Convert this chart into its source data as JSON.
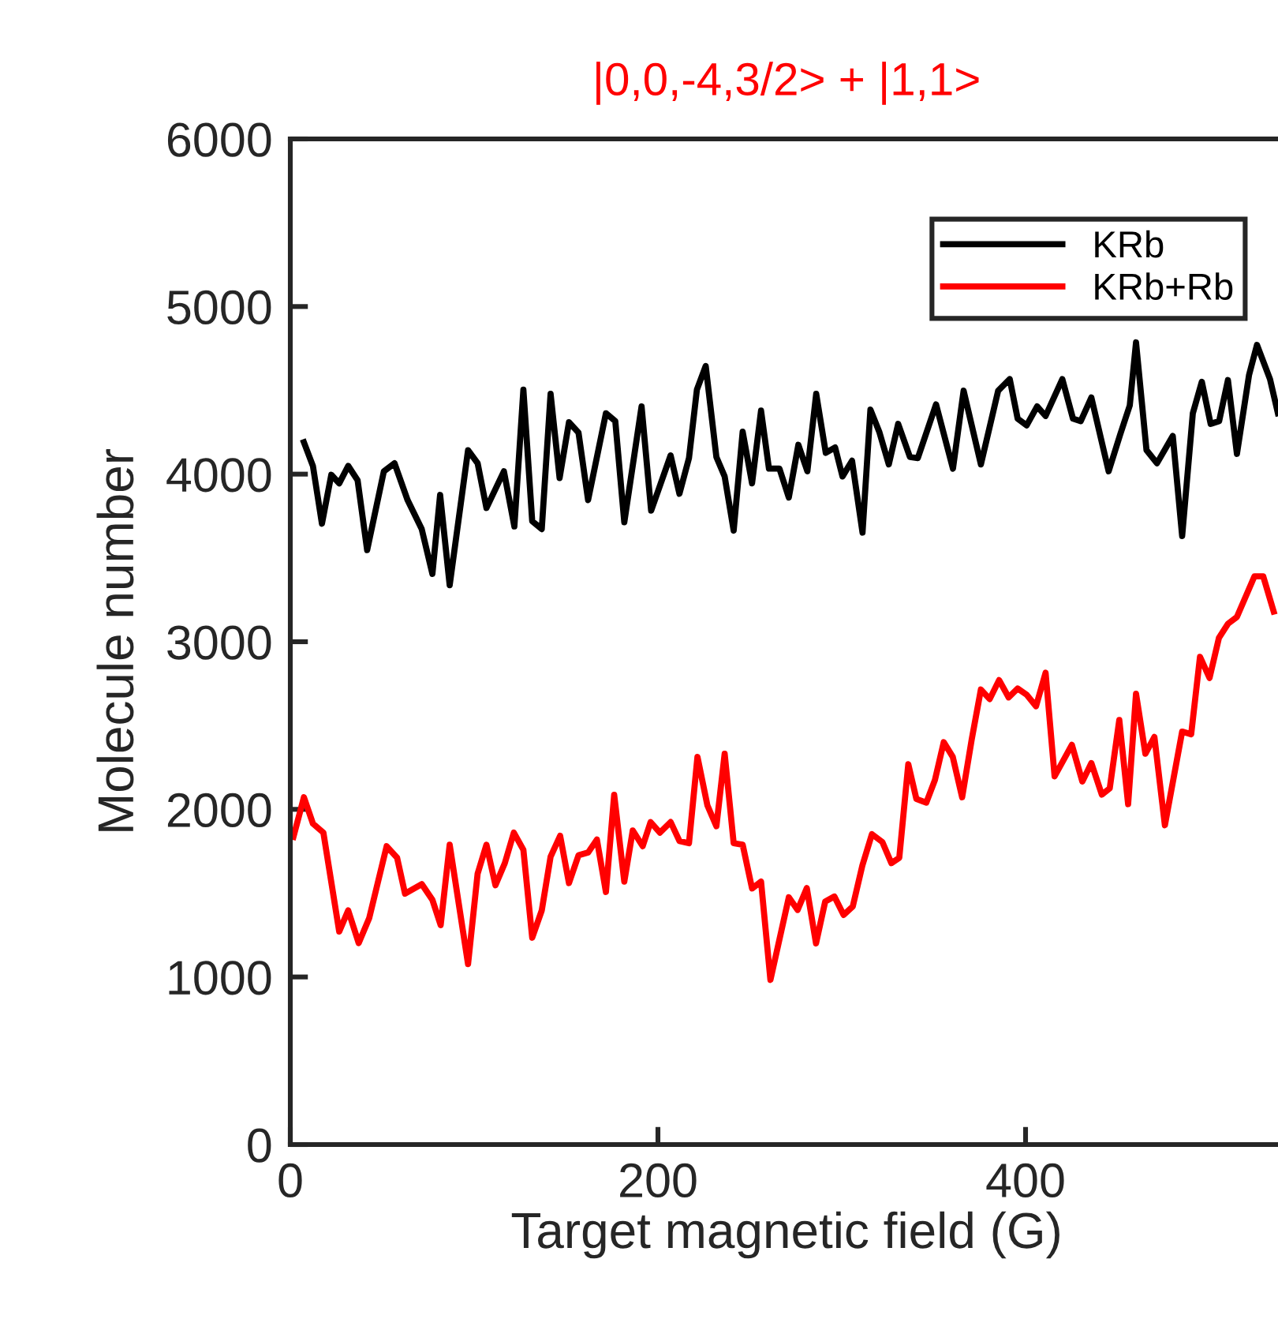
{
  "chart_data": {
    "type": "line",
    "title": "|0,0,-4,3/2> + |1,1>",
    "xlabel": "Target magnetic field (G)",
    "ylabel": "Molecule number",
    "xlim": [
      0,
      540
    ],
    "xticks": [
      0,
      200,
      400
    ],
    "ylim": [
      0,
      6000
    ],
    "yticks": [
      0,
      1000,
      2000,
      3000,
      4000,
      5000,
      6000
    ],
    "legend": "top right",
    "grid": false,
    "marker": "none",
    "line_style": "solid",
    "series": [
      {
        "name": "KRb",
        "color": "#000000",
        "x": [
          7.4,
          12.3,
          17.2,
          22.3,
          26.6,
          31.5,
          36.6,
          41.8,
          50.9,
          56.7,
          63.8,
          71.5,
          77.3,
          81.5,
          86.7,
          96.7,
          101.9,
          106.7,
          116.2,
          121.9,
          126.8,
          131.6,
          136.8,
          141.6,
          146.5,
          151.6,
          156.8,
          162.0,
          171.7,
          176.8,
          181.7,
          191.1,
          196.3,
          206.9,
          211.7,
          216.9,
          221.2,
          226.0,
          231.8,
          236.3,
          241.2,
          246.1,
          251.2,
          256.1,
          260.4,
          266.1,
          271.2,
          276.4,
          281.3,
          286.1,
          291.3,
          296.4,
          300.4,
          305.6,
          311.3,
          315.6,
          320.4,
          325.6,
          330.7,
          337.1,
          341.4,
          351.3,
          360.5,
          366.3,
          375.7,
          385.1,
          391.4,
          395.7,
          400.6,
          406.3,
          410.9,
          420.0,
          425.8,
          430.0,
          435.8,
          445.2,
          451.5,
          456.7,
          460.1,
          465.8,
          471.5,
          480.1,
          485.2,
          491.0,
          495.9,
          500.7,
          505.3,
          510.1,
          515.0,
          521.6,
          525.9,
          533.0,
          537.3
        ],
        "values": [
          4190,
          4049,
          3704,
          3996,
          3945,
          4049,
          3964,
          3547,
          4017,
          4065,
          3845,
          3672,
          3405,
          3876,
          3337,
          4143,
          4065,
          3798,
          4017,
          3688,
          4504,
          3719,
          3672,
          4479,
          3977,
          4310,
          4247,
          3845,
          4363,
          4316,
          3713,
          4404,
          3782,
          4112,
          3883,
          4096,
          4504,
          4645,
          4102,
          3986,
          3663,
          4253,
          3945,
          4379,
          4033,
          4033,
          3861,
          4175,
          4017,
          4479,
          4127,
          4159,
          3986,
          4080,
          3651,
          4385,
          4253,
          4058,
          4300,
          4102,
          4096,
          4416,
          4033,
          4498,
          4058,
          4498,
          4567,
          4331,
          4291,
          4404,
          4347,
          4567,
          4331,
          4316,
          4457,
          4017,
          4237,
          4410,
          4786,
          4143,
          4065,
          4228,
          3631,
          4363,
          4551,
          4300,
          4316,
          4561,
          4121,
          4592,
          4771,
          4567,
          4363
        ]
      },
      {
        "name": "KRb+Rb",
        "color": "#ff0000",
        "x": [
          1.7,
          7.4,
          12.3,
          18.0,
          26.6,
          31.5,
          37.2,
          42.9,
          52.4,
          58.1,
          62.4,
          71.5,
          77.3,
          81.8,
          86.7,
          96.7,
          101.9,
          106.7,
          111.6,
          116.7,
          121.6,
          126.8,
          131.6,
          136.8,
          141.6,
          146.8,
          151.6,
          156.8,
          162.0,
          166.8,
          171.7,
          176.2,
          181.7,
          186.3,
          191.7,
          196.0,
          201.1,
          206.9,
          211.7,
          216.9,
          221.5,
          226.9,
          231.8,
          236.3,
          241.2,
          246.1,
          251.2,
          256.1,
          261.2,
          271.2,
          276.0,
          281.0,
          286.0,
          291.0,
          296.0,
          301.0,
          306.0,
          311.2,
          316.4,
          322.1,
          327.0,
          331.3,
          336.2,
          340.6,
          346.0,
          350.7,
          355.5,
          360.4,
          365.5,
          370.7,
          375.7,
          380.5,
          385.6,
          390.8,
          395.7,
          400.6,
          405.7,
          410.9,
          415.8,
          425.2,
          430.9,
          435.8,
          441.5,
          445.8,
          451.0,
          455.8,
          460.1,
          465.2,
          470.1,
          475.8,
          485.2,
          490.1,
          494.9,
          500.1,
          505.2,
          510.1,
          515.0,
          524.5,
          529.3,
          535.0
        ],
        "values": [
          1836,
          2072,
          1915,
          1861,
          1271,
          1397,
          1202,
          1350,
          1780,
          1711,
          1497,
          1554,
          1460,
          1309,
          1789,
          1077,
          1616,
          1789,
          1547,
          1679,
          1861,
          1758,
          1234,
          1397,
          1717,
          1842,
          1560,
          1726,
          1742,
          1820,
          1507,
          2087,
          1569,
          1874,
          1780,
          1924,
          1861,
          1924,
          1811,
          1798,
          2313,
          2024,
          1899,
          2332,
          1798,
          1789,
          1528,
          1569,
          982,
          1475,
          1400,
          1530,
          1200,
          1450,
          1480,
          1370,
          1420,
          1664,
          1852,
          1805,
          1679,
          1711,
          2269,
          2062,
          2040,
          2175,
          2401,
          2313,
          2072,
          2417,
          2715,
          2658,
          2771,
          2668,
          2721,
          2684,
          2615,
          2815,
          2197,
          2385,
          2166,
          2276,
          2088,
          2125,
          2533,
          2031,
          2690,
          2332,
          2432,
          1905,
          2464,
          2448,
          2910,
          2784,
          3023,
          3107,
          3148,
          3390,
          3390,
          3180
        ]
      }
    ]
  }
}
